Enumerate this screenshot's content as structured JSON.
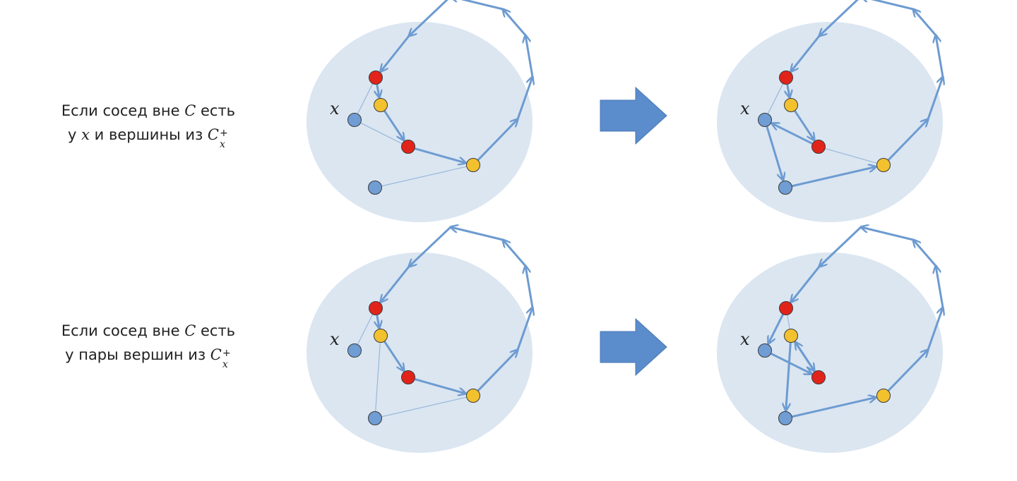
{
  "row1": {
    "caption_line1": "Если сосед вне ",
    "caption_C": "C",
    "caption_line1_end": " есть",
    "caption_line2_start": "у ",
    "caption_x": "x",
    "caption_line2_mid": " и вершины из ",
    "caption_Cx": "C",
    "caption_sub": "x",
    "caption_sup": "+"
  },
  "row2": {
    "caption_line1": "Если сосед вне ",
    "caption_C": "C",
    "caption_line1_end": " есть",
    "caption_line2_start": "у пары вершин из ",
    "caption_Cx": "C",
    "caption_sub": "x",
    "caption_sup": "+"
  },
  "vertex_label": "x",
  "colors": {
    "ellipse": "#dbe6f1",
    "edge": "#6d9bd1",
    "thin_edge": "#9bb8da",
    "arrow_fill": "#5b8ccb",
    "blue_vertex": "#6f9dd4",
    "red_vertex": "#e2231a",
    "yellow_vertex": "#f2c12e"
  }
}
